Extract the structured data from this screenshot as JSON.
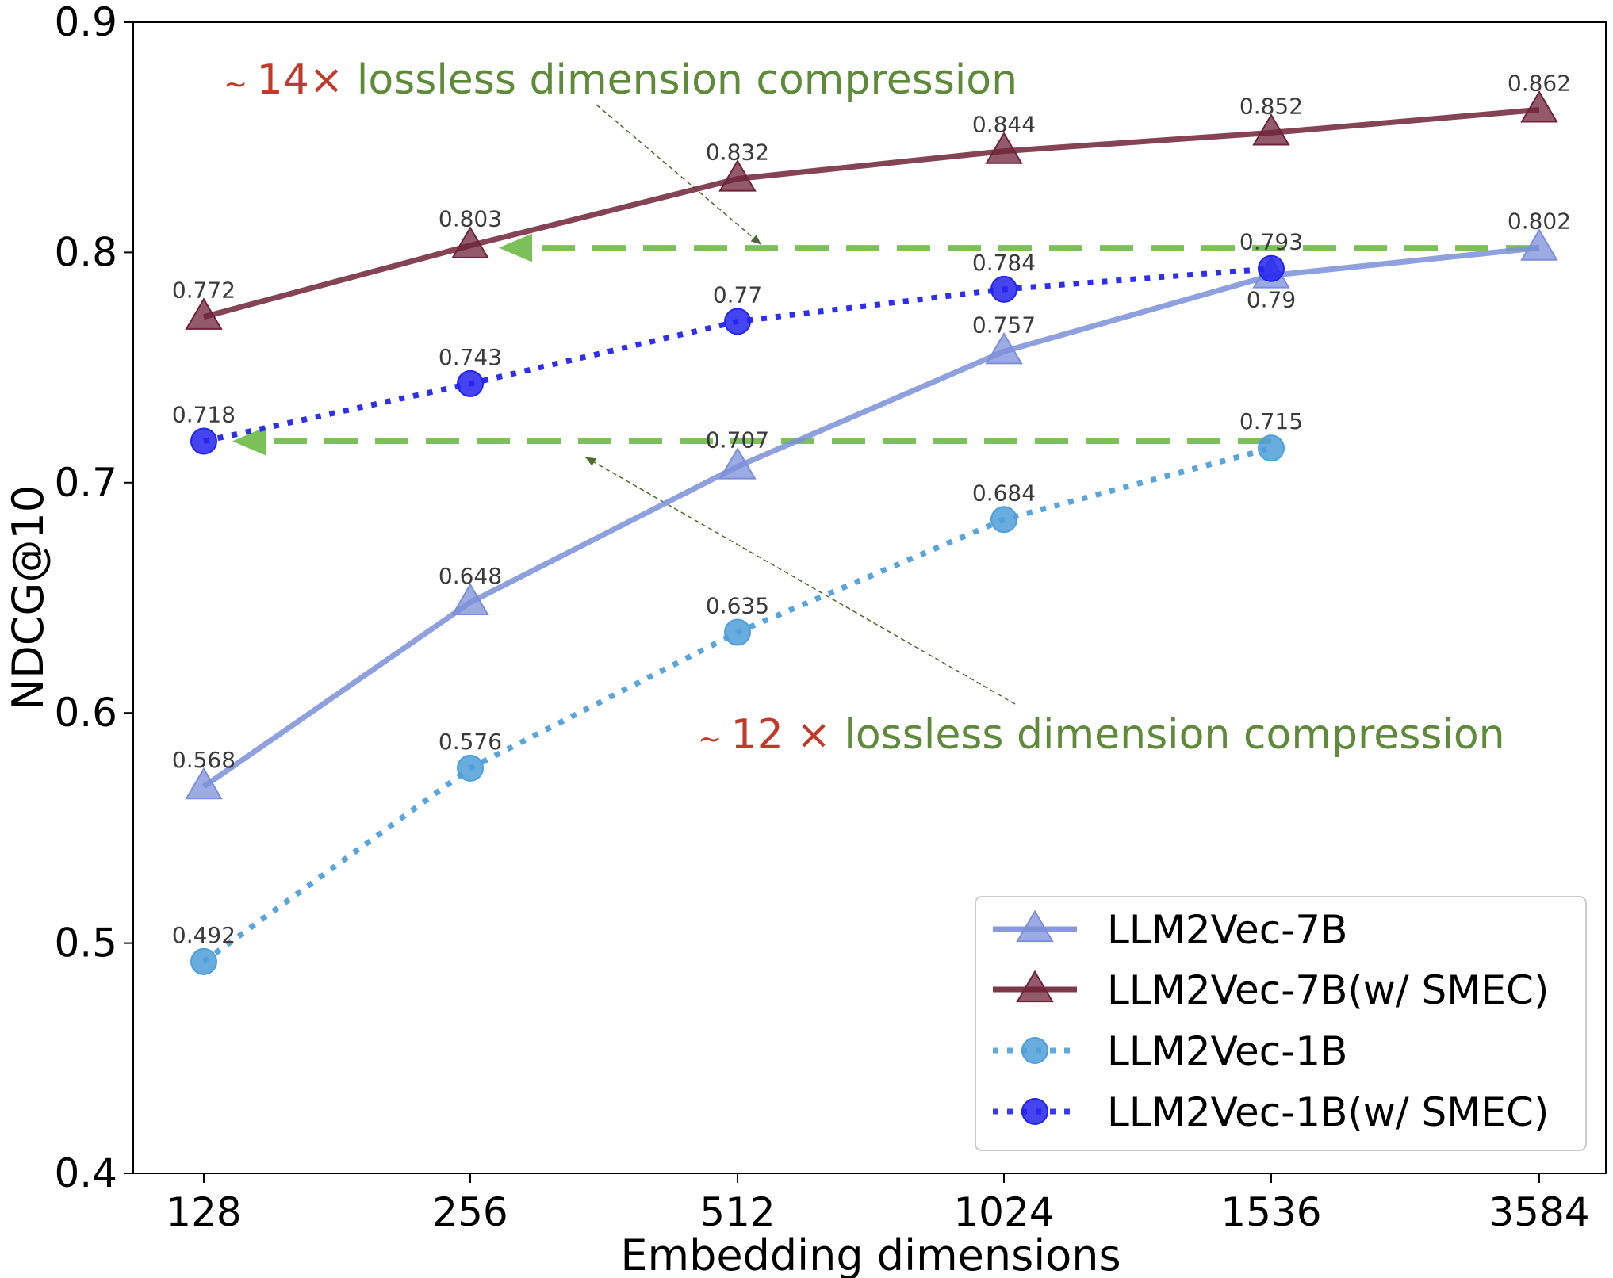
{
  "chart_data": {
    "type": "line",
    "xlabel": "Embedding dimensions",
    "ylabel": "NDCG@10",
    "categories": [
      "128",
      "256",
      "512",
      "1024",
      "1536",
      "3584"
    ],
    "ylim": [
      0.4,
      0.9
    ],
    "yticks": [
      "0.4",
      "0.5",
      "0.6",
      "0.7",
      "0.8",
      "0.9"
    ],
    "grid": false,
    "legend_position": "bottom-right",
    "series": [
      {
        "name": "LLM2Vec-7B",
        "values": [
          0.568,
          0.648,
          0.707,
          0.757,
          0.79,
          0.802
        ],
        "labels": [
          "0.568",
          "0.648",
          "0.707",
          "0.757",
          "0.79",
          "0.802"
        ],
        "color": "#7b8fd9",
        "marker": "triangle",
        "line": "solid"
      },
      {
        "name": "LLM2Vec-7B(w/ SMEC)",
        "values": [
          0.772,
          0.803,
          0.832,
          0.844,
          0.852,
          0.862
        ],
        "labels": [
          "0.772",
          "0.803",
          "0.832",
          "0.844",
          "0.852",
          "0.862"
        ],
        "color": "#6e2338",
        "marker": "triangle",
        "line": "solid"
      },
      {
        "name": "LLM2Vec-1B",
        "values": [
          0.492,
          0.576,
          0.635,
          0.684,
          0.715,
          null
        ],
        "labels": [
          "0.492",
          "0.576",
          "0.635",
          "0.684",
          "0.715",
          null
        ],
        "color": "#4f9fd9",
        "marker": "circle",
        "line": "dotted"
      },
      {
        "name": "LLM2Vec-1B(w/ SMEC)",
        "values": [
          0.718,
          0.743,
          0.77,
          0.784,
          0.793,
          null
        ],
        "labels": [
          "0.718",
          "0.743",
          "0.77",
          "0.784",
          "0.793",
          null
        ],
        "color": "#2323ee",
        "marker": "circle",
        "line": "dotted"
      }
    ],
    "reference_lines": [
      {
        "y": 0.802,
        "from_category": "3584",
        "to_category": "256",
        "color": "#7cc05a"
      },
      {
        "y": 0.718,
        "from_category": "1536",
        "to_category": "128",
        "color": "#7cc05a"
      }
    ],
    "annotations": [
      {
        "prefix": "~ ",
        "factor": "14×",
        "text": " lossless dimension compression",
        "factor_color": "#c0392b",
        "text_color": "#5e8a3a"
      },
      {
        "prefix": "~ ",
        "factor": "12 ×",
        "text": " lossless dimension compression",
        "factor_color": "#c0392b",
        "text_color": "#5e8a3a"
      }
    ]
  }
}
